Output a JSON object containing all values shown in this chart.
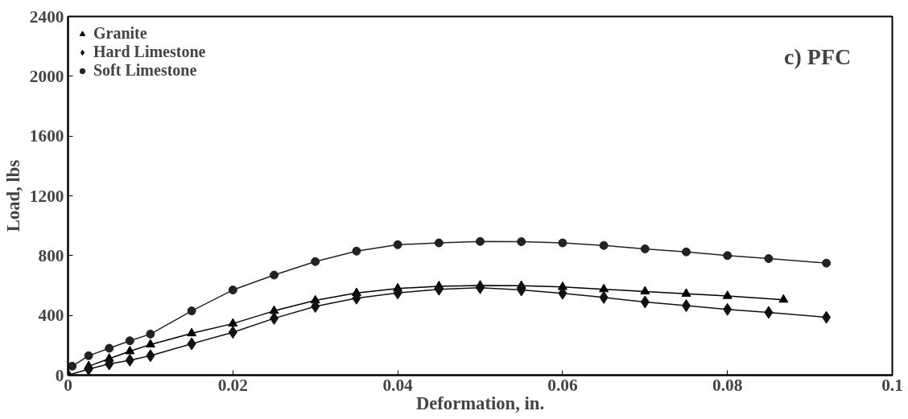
{
  "chart_data": {
    "type": "line",
    "xlabel": "Deformation, in.",
    "ylabel": "Load, lbs",
    "annotations": [
      "c) PFC"
    ],
    "xlim": [
      0,
      0.1
    ],
    "xticks": [
      0,
      0.02,
      0.04,
      0.06,
      0.08,
      0.1
    ],
    "ylim": [
      0,
      2400
    ],
    "yticks": [
      0,
      400,
      800,
      1200,
      1600,
      2000,
      2400
    ],
    "grid": false,
    "legend": "top left",
    "line_style": "solid",
    "series": [
      {
        "name": "Granite",
        "color": "#000000",
        "marker": "triangle",
        "x": [
          0.0025,
          0.005,
          0.0075,
          0.01,
          0.015,
          0.02,
          0.025,
          0.03,
          0.035,
          0.04,
          0.045,
          0.05,
          0.055,
          0.06,
          0.065,
          0.07,
          0.075,
          0.08,
          0.0868
        ],
        "values": [
          60,
          110,
          160,
          205,
          280,
          345,
          430,
          500,
          550,
          580,
          595,
          600,
          598,
          590,
          575,
          560,
          545,
          530,
          505
        ]
      },
      {
        "name": "Hard Limestone",
        "color": "#111111",
        "marker": "diamond",
        "x": [
          0,
          0.0025,
          0.005,
          0.0075,
          0.01,
          0.015,
          0.02,
          0.025,
          0.03,
          0.035,
          0.04,
          0.045,
          0.05,
          0.055,
          0.06,
          0.065,
          0.07,
          0.075,
          0.08,
          0.085,
          0.092
        ],
        "values": [
          0,
          40,
          75,
          100,
          130,
          210,
          287,
          380,
          460,
          515,
          550,
          575,
          585,
          570,
          548,
          520,
          490,
          465,
          440,
          420,
          387
        ]
      },
      {
        "name": "Soft Limestone",
        "color": "#222222",
        "marker": "circle",
        "x": [
          0.0005,
          0.0025,
          0.005,
          0.0075,
          0.01,
          0.015,
          0.02,
          0.025,
          0.03,
          0.035,
          0.04,
          0.045,
          0.05,
          0.055,
          0.06,
          0.065,
          0.07,
          0.075,
          0.08,
          0.085,
          0.092
        ],
        "values": [
          60,
          130,
          180,
          230,
          275,
          430,
          570,
          670,
          760,
          830,
          873,
          885,
          895,
          893,
          885,
          868,
          845,
          825,
          800,
          780,
          750
        ]
      }
    ]
  }
}
